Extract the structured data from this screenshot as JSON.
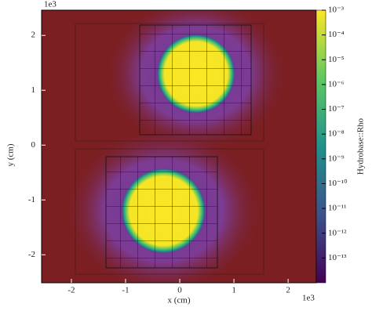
{
  "chart_data": {
    "type": "heatmap",
    "xlabel": "x  (cm)",
    "ylabel": "y  (cm)",
    "x_offset_label": "1e3",
    "y_offset_label": "1e3",
    "xlim": [
      -2.55,
      2.52
    ],
    "ylim": [
      -2.51,
      2.46
    ],
    "xticks": [
      -2,
      -1,
      0,
      1,
      2
    ],
    "yticks": [
      -2,
      -1,
      0,
      1,
      2
    ],
    "colorbar": {
      "label": "Hydrobase::Rho",
      "log": true,
      "lim": [
        1e-14,
        0.001
      ],
      "ticks": [
        {
          "value": 0.001,
          "label": "10⁻³"
        },
        {
          "value": 0.0001,
          "label": "10⁻⁴"
        },
        {
          "value": 1e-05,
          "label": "10⁻⁵"
        },
        {
          "value": 1e-06,
          "label": "10⁻⁶"
        },
        {
          "value": 1e-07,
          "label": "10⁻⁷"
        },
        {
          "value": 1e-08,
          "label": "10⁻⁸"
        },
        {
          "value": 1e-09,
          "label": "10⁻⁹"
        },
        {
          "value": 1e-10,
          "label": "10⁻¹⁰"
        },
        {
          "value": 1e-11,
          "label": "10⁻¹¹"
        },
        {
          "value": 1e-12,
          "label": "10⁻¹²"
        },
        {
          "value": 1e-13,
          "label": "10⁻¹³"
        }
      ]
    },
    "blobs": {
      "x": [
        0.3,
        -0.3
      ],
      "y": [
        1.3,
        -1.2
      ],
      "radius": [
        0.65,
        0.7
      ],
      "values": [
        0.001,
        0.001
      ]
    }
  }
}
